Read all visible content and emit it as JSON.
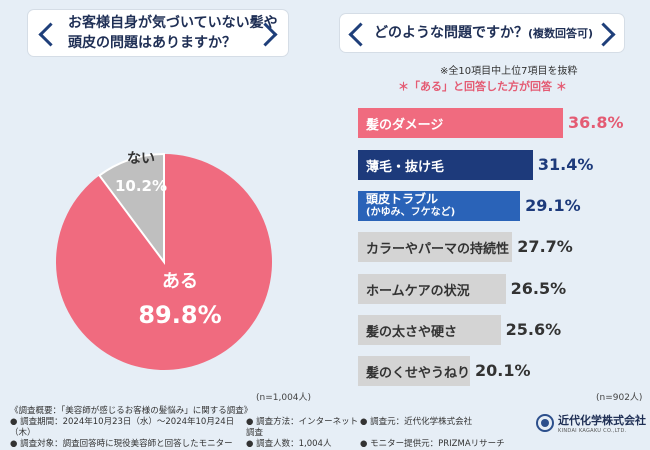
{
  "left_question": {
    "line1": "お客様自身が気づいていない髪や",
    "line2": "頭皮の問題はありますか？"
  },
  "right_question": {
    "main": "どのような問題ですか？",
    "sub": "(複数回答可)"
  },
  "notes": {
    "top10": "※全10項目中上位7項目を抜粋",
    "aru": "＊「ある」と回答した方が回答 ＊"
  },
  "colors": {
    "pink": "#f06b7f",
    "grey": "#bfbfbf",
    "navy": "#1d3a7b",
    "blue": "#2a63b8",
    "light_grey_bar": "#d4d4d4",
    "pink_text": "#e45b73"
  },
  "chart_data": [
    {
      "type": "pie",
      "title": "お客様自身が気づいていない髪や頭皮の問題はありますか？",
      "slices": [
        {
          "label": "ある",
          "value": 89.8,
          "display": "89.8%"
        },
        {
          "label": "ない",
          "value": 10.2,
          "display": "10.2%"
        }
      ],
      "n": "(n=1,004人)"
    },
    {
      "type": "bar",
      "orientation": "horizontal",
      "title": "どのような問題ですか？(複数回答可)",
      "xlim": [
        0,
        40
      ],
      "categories": [
        "髪のダメージ",
        "薄毛・抜け毛",
        "頭皮トラブル(かゆみ、フケなど)",
        "カラーやパーマの持続性",
        "ホームケアの状況",
        "髪の太さや硬さ",
        "髪のくせやうねり"
      ],
      "values": [
        36.8,
        31.4,
        29.1,
        27.7,
        26.5,
        25.6,
        20.1
      ],
      "display": [
        "36.8%",
        "31.4%",
        "29.1%",
        "27.7%",
        "26.5%",
        "25.6%",
        "20.1%"
      ],
      "n": "(n=902人)"
    }
  ],
  "bar_labels": {
    "b1": "髪のダメージ",
    "b2": "薄毛・抜け毛",
    "b3a": "頭皮トラブル",
    "b3b": "(かゆみ、フケなど)",
    "b4": "カラーやパーマの持続性",
    "b5": "ホームケアの状況",
    "b6": "髪の太さや硬さ",
    "b7": "髪のくせやうねり"
  },
  "survey": {
    "r1": "《調査概要：「美容師が感じるお客様の髪悩み」に関する調査》",
    "r2c1": "● 調査期間：2024年10月23日（水）～2024年10月24日（木）",
    "r2c2": "● 調査方法：インターネット調査",
    "r2c3": "● 調査元：近代化学株式会社",
    "r3c1": "● 調査対象：調査回答時に現役美容師と回答したモニター",
    "r3c2": "● 調査人数：1,004人",
    "r3c3": "● モニター提供元：PRIZMAリサーチ"
  },
  "logo": {
    "name": "近代化学株式会社",
    "sub": "KINDAI KAGAKU CO.,LTD."
  }
}
